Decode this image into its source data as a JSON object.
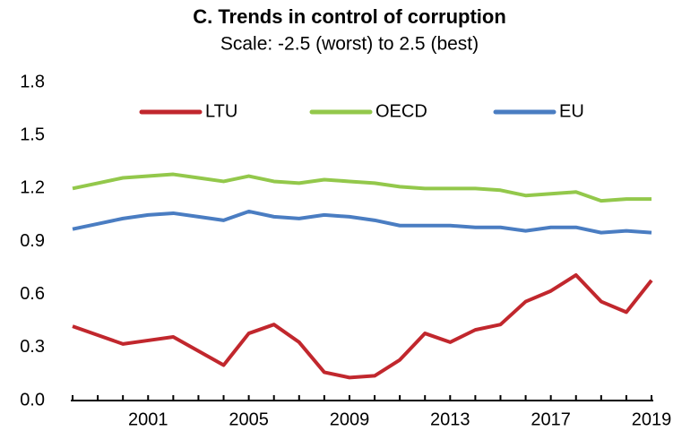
{
  "chart_data": {
    "type": "line",
    "title": "C. Trends in control of corruption",
    "subtitle": "Scale: -2.5 (worst) to 2.5 (best)",
    "categories": [
      null,
      null,
      null,
      "2001",
      null,
      null,
      null,
      "2005",
      null,
      null,
      null,
      "2009",
      null,
      null,
      null,
      "2013",
      null,
      null,
      null,
      "2017",
      null,
      null,
      null,
      "2019"
    ],
    "series": [
      {
        "name": "LTU",
        "color": "#c1272d",
        "values": [
          0.42,
          0.37,
          0.32,
          0.34,
          0.36,
          0.28,
          0.2,
          0.38,
          0.43,
          0.33,
          0.16,
          0.13,
          0.14,
          0.23,
          0.38,
          0.33,
          0.4,
          0.43,
          0.56,
          0.62,
          0.71,
          0.56,
          0.5,
          0.68
        ]
      },
      {
        "name": "OECD",
        "color": "#93c84b",
        "values": [
          1.2,
          1.23,
          1.26,
          1.27,
          1.28,
          1.26,
          1.24,
          1.27,
          1.24,
          1.23,
          1.25,
          1.24,
          1.23,
          1.21,
          1.2,
          1.2,
          1.2,
          1.19,
          1.16,
          1.17,
          1.18,
          1.13,
          1.14,
          1.14
        ]
      },
      {
        "name": "EU",
        "color": "#4a7dc2",
        "values": [
          0.97,
          1.0,
          1.03,
          1.05,
          1.06,
          1.04,
          1.02,
          1.07,
          1.04,
          1.03,
          1.05,
          1.04,
          1.02,
          0.99,
          0.99,
          0.99,
          0.98,
          0.98,
          0.96,
          0.98,
          0.98,
          0.95,
          0.96,
          0.95
        ]
      }
    ],
    "ylim": [
      0,
      1.8
    ],
    "yticks": [
      {
        "value": 0,
        "label": "0.0"
      },
      0.3,
      0.6,
      0.9,
      1.2,
      1.5,
      1.8
    ],
    "grid": false,
    "legend": "top"
  }
}
